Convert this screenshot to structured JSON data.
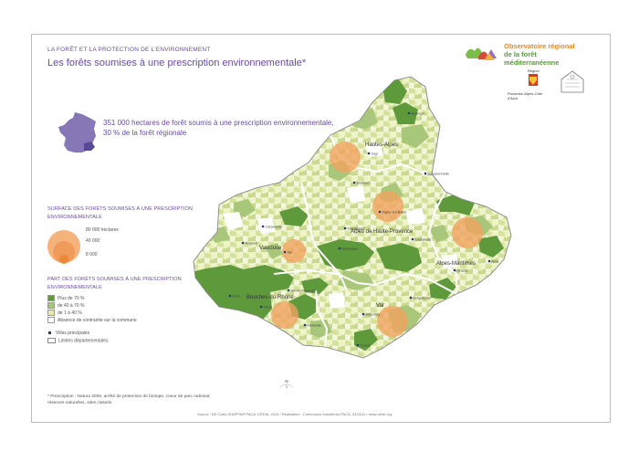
{
  "header": {
    "kicker": "LA FORÊT ET LA PROTECTION DE L'ENVIRONNEMENT",
    "title": "Les forêts soumises à une prescription environnementale*"
  },
  "logo": {
    "line1": "Observatoire régional",
    "line2": "de la forêt méditerranéenne"
  },
  "partners": {
    "region_label": "Région",
    "region_name": "Provence-Alpes-Côte d'Azur"
  },
  "headline": {
    "line1": "351 000 hectares de forêt soumis à une prescription environnementale,",
    "line2": "30 % de la forêt régionale"
  },
  "legend_surface": {
    "title_line1": "SURFACE DES FORÊTS SOUMISES À UNE PRESCRIPTION",
    "title_line2": "ENVIRONNEMENTALE",
    "values": [
      "80 000 hectares",
      "40 000",
      "8 000"
    ]
  },
  "legend_part": {
    "title_line1": "PART DES FORÊTS SOUMISES À UNE PRESCRIPTION",
    "title_line2": "ENVIRONNEMENTALE",
    "classes": [
      {
        "label": "Plus de 70 %",
        "color": "#5e9a3c"
      },
      {
        "label": "de 40 à 70 %",
        "color": "#a8c77a"
      },
      {
        "label": "de 1 à 40 %",
        "color": "#e3ebb3"
      },
      {
        "label": "Absence de contrainte sur la commune",
        "color": "#ffffff"
      }
    ]
  },
  "legend_other": [
    {
      "label": "Villes principales",
      "color": "#1f3a78"
    },
    {
      "label": "Limites départementales",
      "color": "#ffffff"
    }
  ],
  "map": {
    "departments": [
      "Hautes-Alpes",
      "Alpes de Haute-Provence",
      "Vaucluse",
      "Alpes-Maritimes",
      "Bouches-du-Rhône",
      "Var"
    ],
    "cities": [
      "Gap",
      "Briançon",
      "Barcelonnette",
      "Digne-les-Bains",
      "Forcalquier",
      "Sisteron",
      "Carpentras",
      "Avignon",
      "Apt",
      "Manosque",
      "Castellane",
      "Nice",
      "Grasse",
      "Aix-en-Provence",
      "Arles",
      "Istres",
      "Marseille",
      "Brignoles",
      "Draguignan",
      "Toulon"
    ],
    "compass": [
      "N",
      "E",
      "S",
      "O"
    ],
    "scale": [
      "0",
      "20",
      "40"
    ],
    "scale_unit": "km",
    "colors": {
      "dark": "#5e9a3c",
      "mid": "#a8c77a",
      "light": "#e3ebb3",
      "none": "#ffffff",
      "circle": "#f2a25f",
      "title": "#6a4c9c"
    }
  },
  "footnote": {
    "line1": "* Prescription : Natura 2000, arrêté de protection de biotope, coeur de parc national,",
    "line2": "réserves naturelles, sites classés"
  },
  "source": "Source : BD Carto IGN/PFAR PACA, DREAL 2010 / Réalisation : Communes forestières PACA, 04/2011 • www.ofme.org"
}
